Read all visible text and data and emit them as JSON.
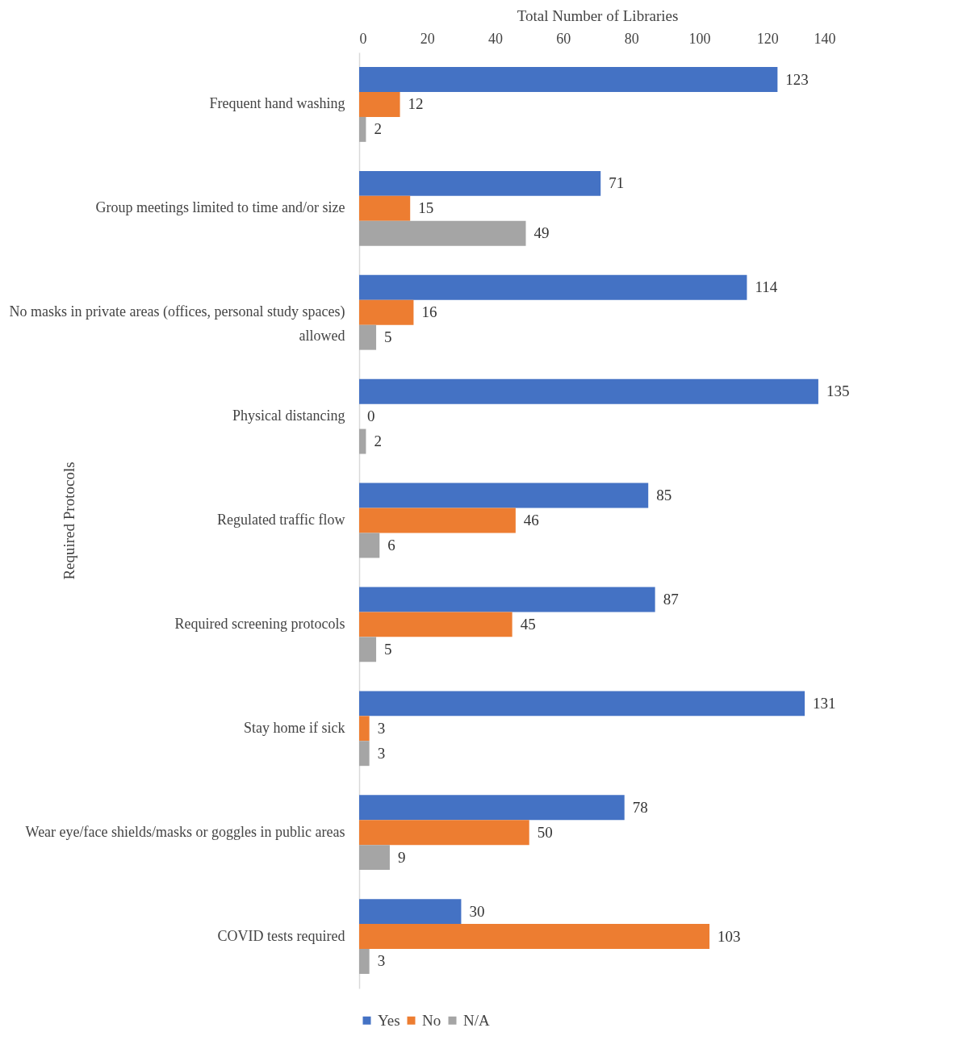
{
  "chart_data": {
    "type": "bar",
    "orientation": "horizontal",
    "xlabel": "Total Number of Libraries",
    "ylabel": "Required Protocols",
    "categories": [
      "Frequent hand washing",
      "Group meetings limited to time and/or size",
      "No masks in private areas (offices, personal study spaces) allowed",
      "Physical distancing",
      "Regulated traffic flow",
      "Required screening protocols",
      "Stay home if sick",
      "Wear eye/face shields/masks or goggles in public areas",
      "COVID tests required"
    ],
    "series": [
      {
        "name": "Yes",
        "color": "#4472c4",
        "values": [
          123,
          71,
          114,
          135,
          85,
          87,
          131,
          78,
          30
        ]
      },
      {
        "name": "No",
        "color": "#ed7d31",
        "values": [
          12,
          15,
          16,
          0,
          46,
          45,
          3,
          50,
          103
        ]
      },
      {
        "name": "N/A",
        "color": "#a5a5a5",
        "values": [
          2,
          49,
          5,
          2,
          6,
          5,
          3,
          9,
          3
        ]
      }
    ],
    "xlim": [
      0,
      140
    ],
    "xticks": [
      0,
      20,
      40,
      60,
      80,
      100,
      120,
      140
    ],
    "data_labels": true,
    "legend": "bottom",
    "grid": false
  }
}
